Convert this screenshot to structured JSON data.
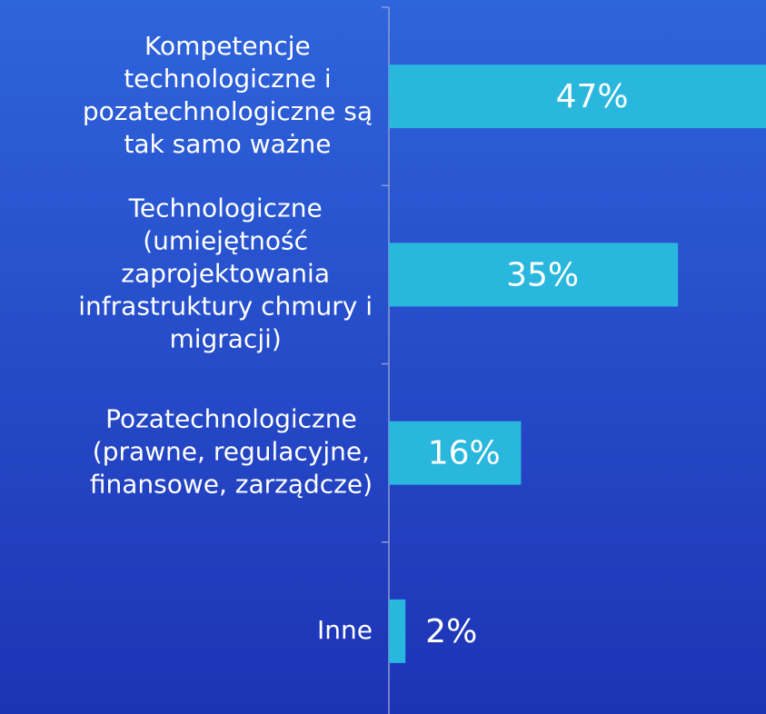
{
  "chart_data": {
    "type": "barh",
    "categories": [
      [
        "Kompetencje",
        "technologiczne i",
        "pozatechnologiczne są",
        "tak samo ważne"
      ],
      [
        "Technologiczne",
        "(umiejętność",
        "zaprojektowania",
        "infrastruktury chmury i",
        "migracji)"
      ],
      [
        "Pozatechnologiczne",
        "(prawne, regulacyjne,",
        "finansowe, zarządcze)"
      ],
      [
        "Inne"
      ]
    ],
    "values": [
      47,
      35,
      16,
      2
    ],
    "value_labels": [
      "47%",
      "35%",
      "16%",
      "2%"
    ],
    "color": "#29b7de"
  }
}
